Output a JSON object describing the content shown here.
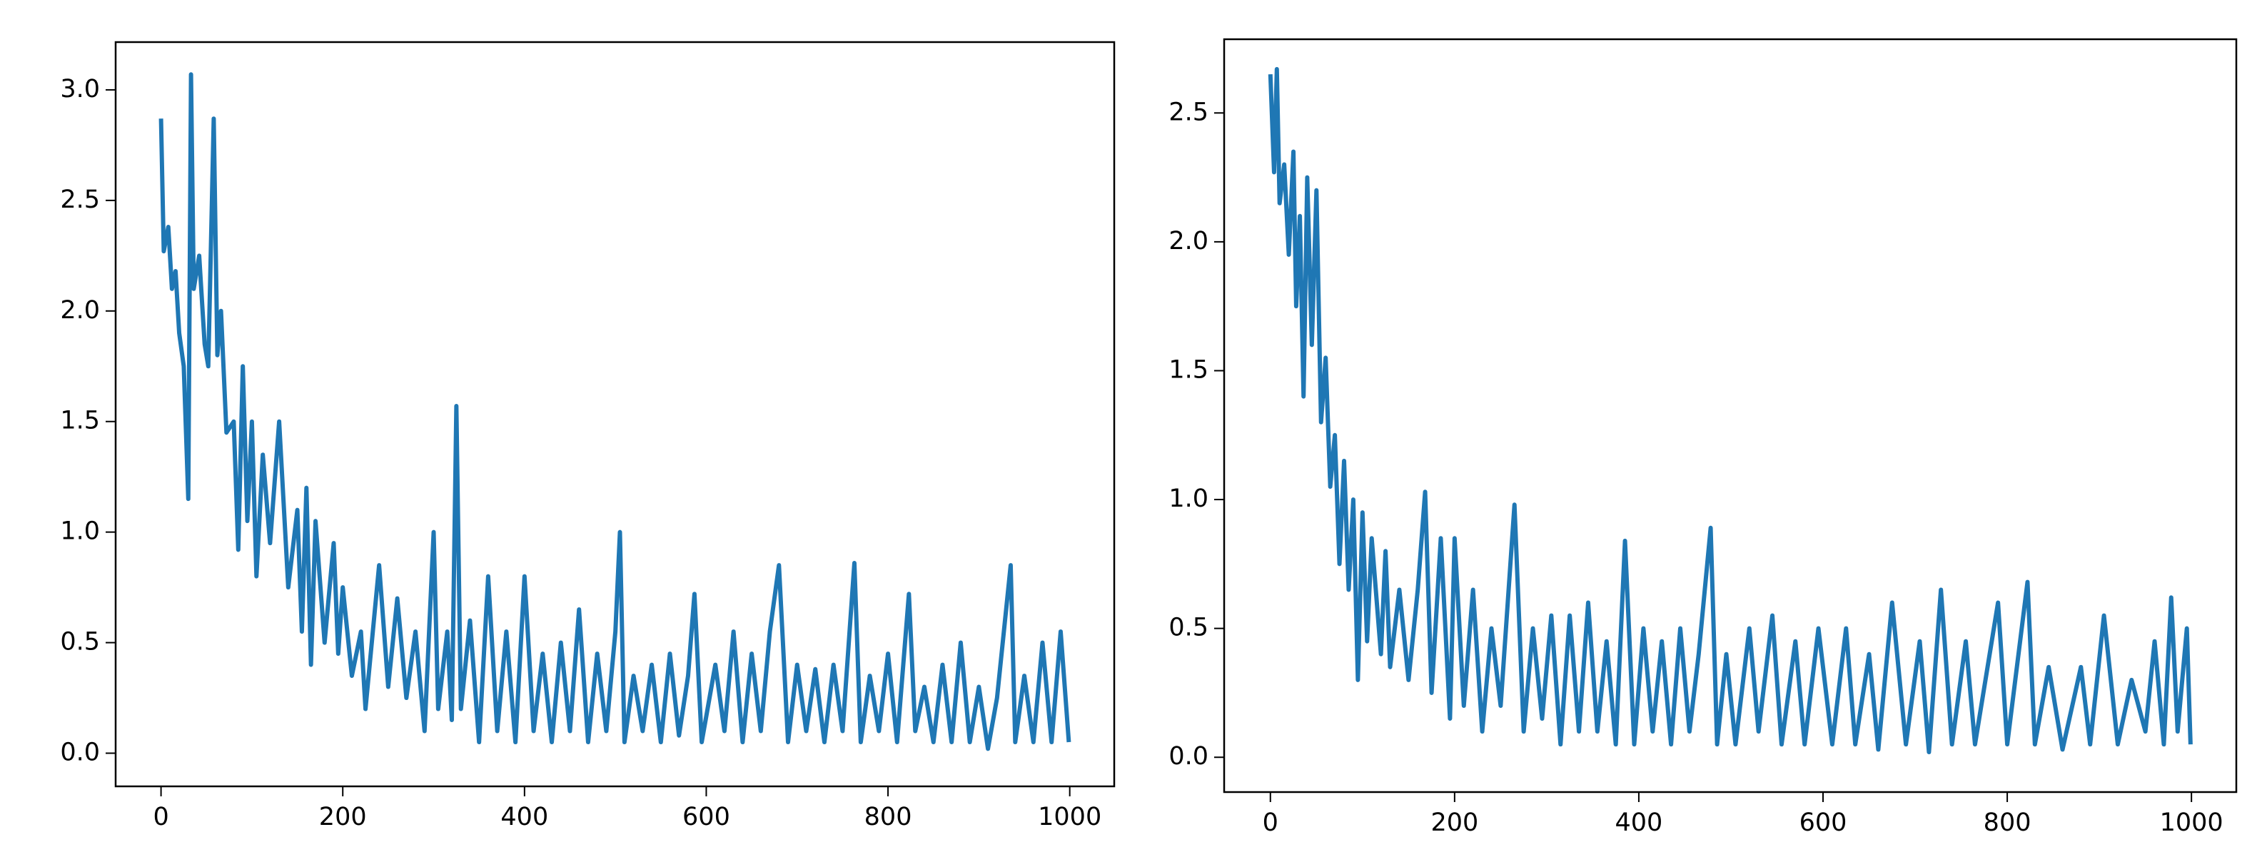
{
  "chart_data": [
    {
      "type": "line",
      "color": "#1f77b4",
      "x": [
        0,
        3,
        8,
        12,
        16,
        20,
        25,
        30,
        33,
        36,
        42,
        48,
        52,
        58,
        62,
        66,
        72,
        80,
        85,
        90,
        95,
        100,
        105,
        112,
        120,
        130,
        140,
        150,
        155,
        160,
        165,
        170,
        180,
        190,
        195,
        200,
        210,
        220,
        225,
        240,
        250,
        260,
        270,
        280,
        290,
        300,
        305,
        315,
        320,
        325,
        330,
        340,
        350,
        360,
        370,
        380,
        390,
        400,
        410,
        420,
        430,
        440,
        450,
        460,
        470,
        480,
        490,
        500,
        505,
        510,
        520,
        530,
        540,
        550,
        560,
        570,
        580,
        587,
        595,
        610,
        620,
        630,
        640,
        650,
        660,
        670,
        680,
        690,
        700,
        710,
        720,
        730,
        740,
        750,
        763,
        770,
        780,
        790,
        800,
        810,
        823,
        830,
        840,
        850,
        860,
        870,
        880,
        890,
        900,
        910,
        920,
        935,
        940,
        950,
        960,
        970,
        980,
        990,
        999
      ],
      "values": [
        2.87,
        2.27,
        2.38,
        2.1,
        2.18,
        1.9,
        1.75,
        1.15,
        3.07,
        2.1,
        2.25,
        1.85,
        1.75,
        2.87,
        1.8,
        2.0,
        1.45,
        1.5,
        0.92,
        1.75,
        1.05,
        1.5,
        0.8,
        1.35,
        0.95,
        1.5,
        0.75,
        1.1,
        0.55,
        1.2,
        0.4,
        1.05,
        0.5,
        0.95,
        0.45,
        0.75,
        0.35,
        0.55,
        0.2,
        0.85,
        0.3,
        0.7,
        0.25,
        0.55,
        0.1,
        1.0,
        0.2,
        0.55,
        0.15,
        1.57,
        0.2,
        0.6,
        0.05,
        0.8,
        0.1,
        0.55,
        0.05,
        0.8,
        0.1,
        0.45,
        0.05,
        0.5,
        0.1,
        0.65,
        0.05,
        0.45,
        0.1,
        0.55,
        1.0,
        0.05,
        0.35,
        0.1,
        0.4,
        0.05,
        0.45,
        0.08,
        0.35,
        0.72,
        0.05,
        0.4,
        0.1,
        0.55,
        0.05,
        0.45,
        0.1,
        0.55,
        0.85,
        0.05,
        0.4,
        0.1,
        0.38,
        0.05,
        0.4,
        0.1,
        0.86,
        0.05,
        0.35,
        0.1,
        0.45,
        0.05,
        0.72,
        0.1,
        0.3,
        0.05,
        0.4,
        0.05,
        0.5,
        0.05,
        0.3,
        0.02,
        0.25,
        0.85,
        0.05,
        0.35,
        0.05,
        0.5,
        0.05,
        0.55,
        0.05
      ],
      "xlim": [
        -49.95,
        1048.95
      ],
      "xticks": [
        0,
        200,
        400,
        600,
        800,
        1000
      ],
      "ylim": [
        -0.15,
        3.216
      ],
      "yticks": [
        {
          "value": 0,
          "label": "0.0"
        },
        0.5,
        {
          "value": 1,
          "label": "1.0"
        },
        1.5,
        {
          "value": 2,
          "label": "2.0"
        },
        2.5,
        {
          "value": 3,
          "label": "3.0"
        }
      ]
    },
    {
      "type": "line",
      "color": "#1f77b4",
      "x": [
        0,
        4,
        7,
        10,
        15,
        20,
        25,
        28,
        32,
        36,
        40,
        45,
        50,
        55,
        60,
        65,
        70,
        75,
        80,
        85,
        90,
        95,
        100,
        105,
        110,
        120,
        125,
        130,
        140,
        150,
        160,
        168,
        175,
        185,
        195,
        200,
        210,
        220,
        230,
        240,
        250,
        265,
        275,
        285,
        295,
        305,
        315,
        325,
        335,
        345,
        355,
        365,
        375,
        385,
        395,
        405,
        415,
        425,
        435,
        445,
        455,
        465,
        478,
        485,
        495,
        505,
        520,
        530,
        545,
        555,
        570,
        580,
        595,
        610,
        625,
        635,
        650,
        660,
        675,
        690,
        705,
        715,
        728,
        740,
        755,
        765,
        790,
        800,
        822,
        830,
        845,
        860,
        880,
        890,
        905,
        920,
        935,
        950,
        960,
        970,
        978,
        985,
        995,
        999
      ],
      "values": [
        2.65,
        2.27,
        2.67,
        2.15,
        2.3,
        1.95,
        2.35,
        1.75,
        2.1,
        1.4,
        2.25,
        1.6,
        2.2,
        1.3,
        1.55,
        1.05,
        1.25,
        0.75,
        1.15,
        0.65,
        1.0,
        0.3,
        0.95,
        0.45,
        0.85,
        0.4,
        0.8,
        0.35,
        0.65,
        0.3,
        0.65,
        1.03,
        0.25,
        0.85,
        0.15,
        0.85,
        0.2,
        0.65,
        0.1,
        0.5,
        0.2,
        0.98,
        0.1,
        0.5,
        0.15,
        0.55,
        0.05,
        0.55,
        0.1,
        0.6,
        0.1,
        0.45,
        0.05,
        0.84,
        0.05,
        0.5,
        0.1,
        0.45,
        0.05,
        0.5,
        0.1,
        0.4,
        0.89,
        0.05,
        0.4,
        0.05,
        0.5,
        0.1,
        0.55,
        0.05,
        0.45,
        0.05,
        0.5,
        0.05,
        0.5,
        0.05,
        0.4,
        0.03,
        0.6,
        0.05,
        0.45,
        0.02,
        0.65,
        0.05,
        0.45,
        0.05,
        0.6,
        0.05,
        0.68,
        0.05,
        0.35,
        0.03,
        0.35,
        0.05,
        0.55,
        0.05,
        0.3,
        0.1,
        0.45,
        0.05,
        0.62,
        0.1,
        0.5,
        0.05
      ],
      "xlim": [
        -50.2,
        1048.7
      ],
      "xticks": [
        0,
        200,
        400,
        600,
        800,
        1000
      ],
      "ylim": [
        -0.135,
        2.786
      ],
      "yticks": [
        {
          "value": 0,
          "label": "0.0"
        },
        0.5,
        {
          "value": 1,
          "label": "1.0"
        },
        1.5,
        {
          "value": 2,
          "label": "2.0"
        },
        2.5
      ]
    }
  ]
}
